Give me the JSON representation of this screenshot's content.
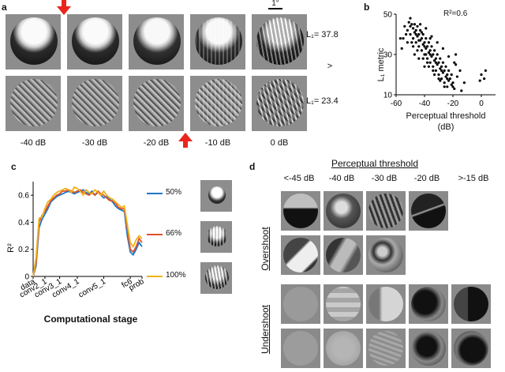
{
  "panels": {
    "a": "a",
    "b": "b",
    "c": "c",
    "d": "d"
  },
  "panel_a": {
    "scale_bar": "1°",
    "row1_metric": "L₁= 37.8",
    "row2_metric": "L₁= 23.4",
    "comparator": ">",
    "db_labels": [
      "-40 dB",
      "-30 dB",
      "-20 dB",
      "-10 dB",
      "0 dB"
    ]
  },
  "panel_b": {
    "r2_label": "R²=0.6",
    "ylabel": "L₁ metric",
    "xlabel_1": "Perceptual threshold",
    "xlabel_2": "(dB)"
  },
  "panel_c": {
    "ylabel": "R²",
    "xlabel": "Computational stage",
    "legend": [
      {
        "name": "50%",
        "color": "#1f77c8"
      },
      {
        "name": "66%",
        "color": "#e0522a"
      },
      {
        "name": "100%",
        "color": "#f0b21a"
      }
    ]
  },
  "panel_d": {
    "title": "Perceptual threshold",
    "columns": [
      "<-45 dB",
      "-40 dB",
      "-30 dB",
      "-20 dB",
      ">-15 dB"
    ],
    "row_group_1": "Overshoot",
    "row_group_2": "Undershoot"
  },
  "chart_data": [
    {
      "type": "scatter",
      "title": "",
      "xlabel": "Perceptual threshold (dB)",
      "ylabel": "L1 metric",
      "xlim": [
        -60,
        10
      ],
      "ylim": [
        10,
        50
      ],
      "xticks": [
        "-60",
        "-40",
        "-20",
        "0"
      ],
      "yticks": [
        "10",
        "30",
        "50"
      ],
      "annotation": "R²=0.6",
      "points": [
        [
          -51,
          46
        ],
        [
          -50,
          44
        ],
        [
          -49,
          45
        ],
        [
          -48,
          43
        ],
        [
          -52,
          42
        ],
        [
          -47,
          41
        ],
        [
          -46,
          42
        ],
        [
          -50,
          40
        ],
        [
          -45,
          39
        ],
        [
          -44,
          40
        ],
        [
          -48,
          38
        ],
        [
          -43,
          37
        ],
        [
          -42,
          38
        ],
        [
          -46,
          36
        ],
        [
          -41,
          35
        ],
        [
          -40,
          36
        ],
        [
          -44,
          34
        ],
        [
          -39,
          33
        ],
        [
          -38,
          34
        ],
        [
          -42,
          32
        ],
        [
          -37,
          31
        ],
        [
          -36,
          32
        ],
        [
          -40,
          30
        ],
        [
          -35,
          29
        ],
        [
          -34,
          30
        ],
        [
          -38,
          28
        ],
        [
          -33,
          27
        ],
        [
          -32,
          28
        ],
        [
          -36,
          26
        ],
        [
          -31,
          25
        ],
        [
          -30,
          26
        ],
        [
          -34,
          24
        ],
        [
          -29,
          23
        ],
        [
          -28,
          24
        ],
        [
          -32,
          22
        ],
        [
          -27,
          21
        ],
        [
          -26,
          22
        ],
        [
          -30,
          20
        ],
        [
          -25,
          19
        ],
        [
          -24,
          20
        ],
        [
          -28,
          18
        ],
        [
          -23,
          17
        ],
        [
          -22,
          18
        ],
        [
          -26,
          16
        ],
        [
          -21,
          15
        ],
        [
          -20,
          16
        ],
        [
          -24,
          14
        ],
        [
          -19,
          13
        ],
        [
          -47,
          45
        ],
        [
          -45,
          44
        ],
        [
          -43,
          42
        ],
        [
          -41,
          40
        ],
        [
          -39,
          38
        ],
        [
          -37,
          36
        ],
        [
          -35,
          34
        ],
        [
          -33,
          32
        ],
        [
          -31,
          30
        ],
        [
          -29,
          28
        ],
        [
          -27,
          26
        ],
        [
          -25,
          24
        ],
        [
          -23,
          22
        ],
        [
          -21,
          20
        ],
        [
          -53,
          40
        ],
        [
          -49,
          36
        ],
        [
          -45,
          32
        ],
        [
          -41,
          28
        ],
        [
          -37,
          24
        ],
        [
          -33,
          20
        ],
        [
          -29,
          17
        ],
        [
          -55,
          38
        ],
        [
          -46,
          40
        ],
        [
          -44,
          37
        ],
        [
          -40,
          34
        ],
        [
          -36,
          30
        ],
        [
          -32,
          26
        ],
        [
          -28,
          22
        ],
        [
          -24,
          18
        ],
        [
          -20,
          14
        ],
        [
          -17,
          19
        ],
        [
          -15,
          22
        ],
        [
          -12,
          16
        ],
        [
          -18,
          25
        ],
        [
          -14,
          12
        ],
        [
          -48,
          34
        ],
        [
          -52,
          36
        ],
        [
          -38,
          26
        ],
        [
          -34,
          22
        ],
        [
          -30,
          18
        ],
        [
          -26,
          14
        ],
        [
          -42,
          41
        ],
        [
          -36,
          38
        ],
        [
          -50,
          48
        ],
        [
          -54,
          44
        ],
        [
          -57,
          38
        ],
        [
          -56,
          33
        ],
        [
          -44,
          28
        ],
        [
          -40,
          24
        ],
        [
          -18,
          30
        ],
        [
          0,
          20
        ],
        [
          2,
          18
        ],
        [
          -1,
          17
        ],
        [
          3,
          22
        ],
        [
          -43,
          45
        ],
        [
          -39,
          43
        ],
        [
          -35,
          39
        ],
        [
          -31,
          36
        ],
        [
          -27,
          33
        ],
        [
          -23,
          29
        ],
        [
          -19,
          26
        ],
        [
          -47,
          30
        ],
        [
          -39,
          30
        ]
      ]
    },
    {
      "type": "line",
      "title": "",
      "xlabel": "Computational stage",
      "ylabel": "R²",
      "ylim": [
        0,
        0.7
      ],
      "yticks": [
        "0",
        "0.2",
        "0.4",
        "0.6"
      ],
      "xticks": [
        "data",
        "conv2_1",
        "conv3_1",
        "conv4_1",
        "conv5_1",
        "fc6",
        "prob"
      ],
      "xtick_positions": [
        0,
        4,
        9,
        15,
        24,
        33,
        37
      ],
      "series": [
        {
          "name": "50%",
          "values": [
            0,
            0.08,
            0.36,
            0.42,
            0.46,
            0.5,
            0.55,
            0.57,
            0.59,
            0.6,
            0.61,
            0.62,
            0.63,
            0.62,
            0.61,
            0.62,
            0.63,
            0.64,
            0.62,
            0.61,
            0.63,
            0.6,
            0.62,
            0.6,
            0.58,
            0.59,
            0.57,
            0.55,
            0.52,
            0.5,
            0.49,
            0.48,
            0.3,
            0.18,
            0.16,
            0.2,
            0.25,
            0.22
          ]
        },
        {
          "name": "66%",
          "values": [
            0,
            0.1,
            0.4,
            0.45,
            0.48,
            0.52,
            0.56,
            0.58,
            0.6,
            0.61,
            0.63,
            0.63,
            0.64,
            0.63,
            0.62,
            0.63,
            0.64,
            0.62,
            0.61,
            0.6,
            0.62,
            0.6,
            0.63,
            0.61,
            0.6,
            0.58,
            0.56,
            0.56,
            0.54,
            0.51,
            0.5,
            0.5,
            0.35,
            0.2,
            0.18,
            0.22,
            0.28,
            0.25
          ]
        },
        {
          "name": "100%",
          "values": [
            0,
            0.14,
            0.43,
            0.44,
            0.5,
            0.55,
            0.57,
            0.6,
            0.62,
            0.63,
            0.64,
            0.65,
            0.64,
            0.62,
            0.66,
            0.65,
            0.63,
            0.6,
            0.64,
            0.62,
            0.61,
            0.64,
            0.62,
            0.6,
            0.63,
            0.6,
            0.58,
            0.57,
            0.55,
            0.53,
            0.51,
            0.52,
            0.38,
            0.25,
            0.22,
            0.27,
            0.3,
            0.28
          ]
        }
      ]
    }
  ]
}
